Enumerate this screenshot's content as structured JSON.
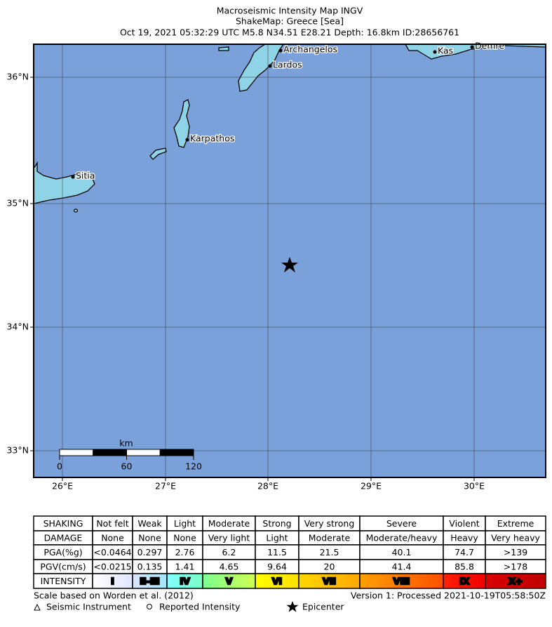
{
  "title": [
    "Macroseismic Intensity Map INGV",
    "ShakeMap: Greece [Sea]",
    "Oct 19, 2021 05:32:29 UTC M5.8 N34.51 E28.21 Depth: 16.8km ID:28656761"
  ],
  "map": {
    "lon_labels": [
      "26°E",
      "27°E",
      "28°E",
      "29°E",
      "30°E"
    ],
    "lat_labels": [
      "36°N",
      "35°N",
      "34°N",
      "33°N"
    ],
    "places": [
      "Archangelos",
      "Lardos",
      "Kas",
      "Demre",
      "Karpathos",
      "Sitia"
    ],
    "scale_bar": {
      "unit": "km",
      "labels": [
        0,
        60,
        120
      ]
    }
  },
  "legend_table": {
    "rows": [
      [
        "SHAKING",
        "Not felt",
        "Weak",
        "Light",
        "Moderate",
        "Strong",
        "Very strong",
        "Severe",
        "Violent",
        "Extreme"
      ],
      [
        "DAMAGE",
        "None",
        "None",
        "None",
        "Very light",
        "Light",
        "Moderate",
        "Moderate/heavy",
        "Heavy",
        "Very heavy"
      ],
      [
        "PGA(%g)",
        "<0.0464",
        "0.297",
        "2.76",
        "6.2",
        "11.5",
        "21.5",
        "40.1",
        "74.7",
        ">139"
      ],
      [
        "PGV(cm/s)",
        "<0.0215",
        "0.135",
        "1.41",
        "4.65",
        "9.64",
        "20",
        "41.4",
        "85.8",
        ">178"
      ],
      [
        "INTENSITY",
        "I",
        "II-III",
        "IV",
        "V",
        "VI",
        "VII",
        "VIII",
        "IX",
        "X+"
      ]
    ]
  },
  "footer": {
    "scale_note": "Scale based on Worden et al. (2012)",
    "version": "Version 1: Processed 2021-10-19T05:58:50Z",
    "legend": [
      "Seismic Instrument",
      "Reported Intensity",
      "Epicenter"
    ]
  }
}
